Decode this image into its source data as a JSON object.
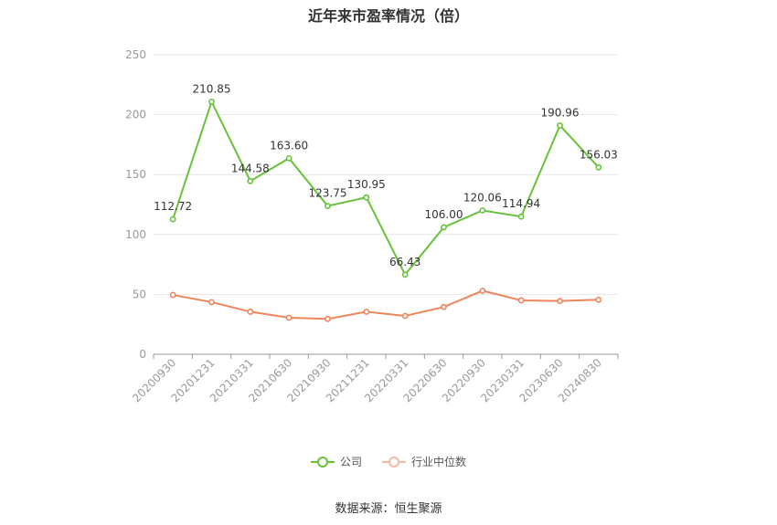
{
  "chart_data": {
    "type": "line",
    "title": "近年来市盈率情况（倍）",
    "categories": [
      "20200930",
      "20201231",
      "20210331",
      "20210630",
      "20210930",
      "20211231",
      "20220331",
      "20220630",
      "20220930",
      "20230331",
      "20230630",
      "20240830"
    ],
    "ylim": [
      0,
      250
    ],
    "yticks": [
      0,
      50,
      100,
      150,
      200,
      250
    ],
    "series": [
      {
        "name": "公司",
        "color": "#67c23a",
        "values": [
          112.72,
          210.85,
          144.58,
          163.6,
          123.75,
          130.95,
          66.43,
          106.0,
          120.06,
          114.94,
          190.96,
          156.03
        ],
        "labels": [
          "112.72",
          "210.85",
          "144.58",
          "163.60",
          "123.75",
          "130.95",
          "66.43",
          "106.00",
          "120.06",
          "114.94",
          "190.96",
          "156.03"
        ]
      },
      {
        "name": "行业中位数",
        "color": "#f0855c",
        "values": [
          49.5,
          43.5,
          35.5,
          30.5,
          29.5,
          35.5,
          32.0,
          39.5,
          53.0,
          45.0,
          44.5,
          45.5
        ]
      }
    ],
    "legend_position": "bottom",
    "grid": true
  },
  "source": "数据来源：恒生聚源"
}
